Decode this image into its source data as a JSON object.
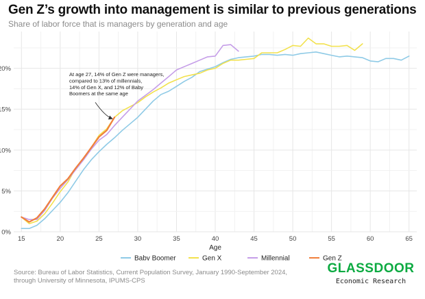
{
  "title": "Gen Z’s growth into management is similar to previous generations",
  "subtitle": "Share of labor force that is managers by generation and age",
  "source": "Source: Bureau of Labor Statistics, Current Population Survey, January 1990-September 2024, through University of Minnesota, IPUMS-CPS",
  "logo": {
    "name": "GLASSDOOR",
    "sub": "Economic Research",
    "color": "#0caa41"
  },
  "chart_data": {
    "type": "line",
    "xlabel": "Age",
    "ylabel": "",
    "xlim": [
      14,
      66
    ],
    "ylim": [
      0,
      24.5
    ],
    "x_ticks": [
      15,
      20,
      25,
      30,
      35,
      40,
      45,
      50,
      55,
      60,
      65
    ],
    "y_ticks": [
      0,
      5,
      10,
      15,
      20
    ],
    "y_tick_labels": [
      "0%",
      "5%",
      "10%",
      "15%",
      "20%"
    ],
    "grid": true,
    "legend_position": "bottom",
    "annotation": {
      "lines": [
        "At age 27, 14% of Gen Z were managers,",
        "compared to 13% of millennials,",
        "14% of Gen X, and 12% of Baby",
        "Boomers at the same age"
      ],
      "arrow_to": [
        27,
        14
      ]
    },
    "series": [
      {
        "name": "Baby Boomer",
        "color": "#8ecae6",
        "x": [
          15,
          16,
          17,
          18,
          19,
          20,
          21,
          22,
          23,
          24,
          25,
          26,
          27,
          28,
          29,
          30,
          31,
          32,
          33,
          34,
          35,
          36,
          37,
          38,
          39,
          40,
          41,
          42,
          43,
          44,
          45,
          46,
          47,
          48,
          49,
          50,
          51,
          52,
          53,
          54,
          55,
          56,
          57,
          58,
          59,
          60,
          61,
          62,
          63,
          64,
          65
        ],
        "y": [
          0.4,
          0.4,
          0.8,
          1.6,
          2.6,
          3.6,
          4.8,
          6.2,
          7.6,
          8.8,
          9.8,
          10.7,
          11.5,
          12.4,
          13.2,
          14.0,
          15.0,
          16.0,
          16.8,
          17.2,
          17.8,
          18.4,
          18.9,
          19.6,
          19.9,
          20.2,
          20.7,
          21.1,
          21.3,
          21.4,
          21.5,
          21.7,
          21.7,
          21.6,
          21.7,
          21.6,
          21.8,
          21.9,
          22.0,
          21.8,
          21.6,
          21.4,
          21.5,
          21.4,
          21.3,
          20.9,
          20.8,
          21.2,
          21.2,
          21.0,
          21.5
        ]
      },
      {
        "name": "Gen X",
        "color": "#f2e14c",
        "x": [
          15,
          16,
          17,
          18,
          19,
          20,
          21,
          22,
          23,
          24,
          25,
          26,
          27,
          28,
          29,
          30,
          31,
          32,
          33,
          34,
          35,
          36,
          37,
          38,
          39,
          40,
          41,
          42,
          43,
          44,
          45,
          46,
          47,
          48,
          49,
          50,
          51,
          52,
          53,
          54,
          55,
          56,
          57,
          58,
          59
        ],
        "y": [
          1.8,
          1.0,
          1.3,
          2.2,
          3.5,
          4.9,
          6.1,
          7.8,
          9.0,
          10.3,
          11.8,
          12.6,
          14.0,
          14.8,
          15.3,
          15.8,
          16.5,
          17.1,
          17.6,
          18.2,
          18.6,
          19.0,
          19.2,
          19.4,
          19.8,
          20.0,
          20.6,
          21.0,
          21.0,
          21.1,
          21.2,
          21.9,
          21.9,
          21.9,
          22.3,
          22.8,
          22.7,
          23.7,
          23.0,
          23.0,
          22.7,
          22.7,
          22.8,
          22.2,
          23.0
        ]
      },
      {
        "name": "Millennial",
        "color": "#c59de8",
        "x": [
          15,
          16,
          17,
          18,
          19,
          20,
          21,
          22,
          23,
          24,
          25,
          26,
          27,
          28,
          29,
          30,
          31,
          32,
          33,
          34,
          35,
          36,
          37,
          38,
          39,
          40,
          41,
          42,
          43
        ],
        "y": [
          1.8,
          1.5,
          1.5,
          2.6,
          4.1,
          5.3,
          6.4,
          7.6,
          8.8,
          10.1,
          11.2,
          11.9,
          13.0,
          14.0,
          15.0,
          16.0,
          16.7,
          17.4,
          18.2,
          19.0,
          19.8,
          20.2,
          20.6,
          21.0,
          21.4,
          21.5,
          22.8,
          22.9,
          22.1
        ]
      },
      {
        "name": "Gen Z",
        "color": "#f07f3c",
        "x": [
          15,
          16,
          17,
          18,
          19,
          20,
          21,
          22,
          23,
          24,
          25,
          26,
          27
        ],
        "y": [
          1.8,
          1.2,
          1.7,
          2.8,
          4.2,
          5.6,
          6.5,
          7.8,
          9.0,
          10.3,
          11.6,
          12.4,
          14.0
        ]
      }
    ]
  }
}
